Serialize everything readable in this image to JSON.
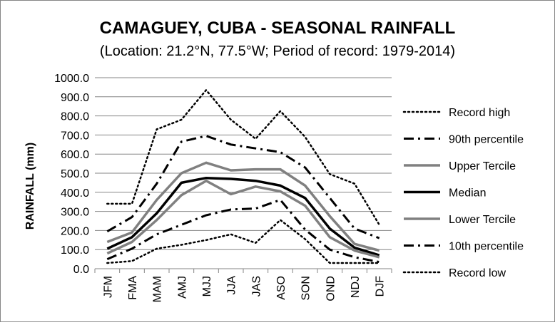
{
  "chart_data": {
    "type": "line",
    "title": "CAMAGUEY, CUBA - SEASONAL RAINFALL",
    "subtitle": "(Location: 21.2°N, 77.5°W; Period of record: 1979-2014)",
    "xlabel": "",
    "ylabel": "RAINFALL (mm)",
    "ylim": [
      0,
      1000
    ],
    "yticks": [
      "1000.0",
      "900.0",
      "800.0",
      "700.0",
      "600.0",
      "500.0",
      "400.0",
      "300.0",
      "200.0",
      "100.0",
      "0.0"
    ],
    "grid": true,
    "legend_position": "right",
    "categories": [
      "JFM",
      "FMA",
      "MAM",
      "AMJ",
      "MJJ",
      "JJA",
      "JAS",
      "ASO",
      "SON",
      "OND",
      "NDJ",
      "DJF"
    ],
    "series": [
      {
        "name": "Record high",
        "style": "dotted",
        "color": "#000000",
        "values": [
          340,
          340,
          730,
          780,
          935,
          780,
          680,
          825,
          690,
          495,
          445,
          230
        ]
      },
      {
        "name": "90th percentile",
        "style": "dashdot",
        "color": "#000000",
        "values": [
          195,
          270,
          445,
          665,
          695,
          650,
          630,
          610,
          530,
          370,
          210,
          160
        ]
      },
      {
        "name": "Upper Tercile",
        "style": "solid-gray",
        "color": "#808080",
        "values": [
          140,
          190,
          360,
          500,
          555,
          515,
          520,
          520,
          435,
          275,
          130,
          95
        ]
      },
      {
        "name": "Median",
        "style": "solid-black",
        "color": "#000000",
        "values": [
          105,
          165,
          290,
          450,
          475,
          470,
          460,
          435,
          370,
          210,
          110,
          70
        ]
      },
      {
        "name": "Lower Tercile",
        "style": "solid-gray",
        "color": "#808080",
        "values": [
          80,
          140,
          255,
          385,
          460,
          390,
          430,
          405,
          330,
          165,
          95,
          60
        ]
      },
      {
        "name": "10th percentile",
        "style": "dashdot",
        "color": "#000000",
        "values": [
          50,
          105,
          180,
          230,
          280,
          310,
          315,
          360,
          205,
          100,
          60,
          35
        ]
      },
      {
        "name": "Record low",
        "style": "dotted",
        "color": "#000000",
        "values": [
          30,
          40,
          105,
          125,
          150,
          180,
          135,
          255,
          155,
          30,
          30,
          30
        ]
      }
    ]
  }
}
